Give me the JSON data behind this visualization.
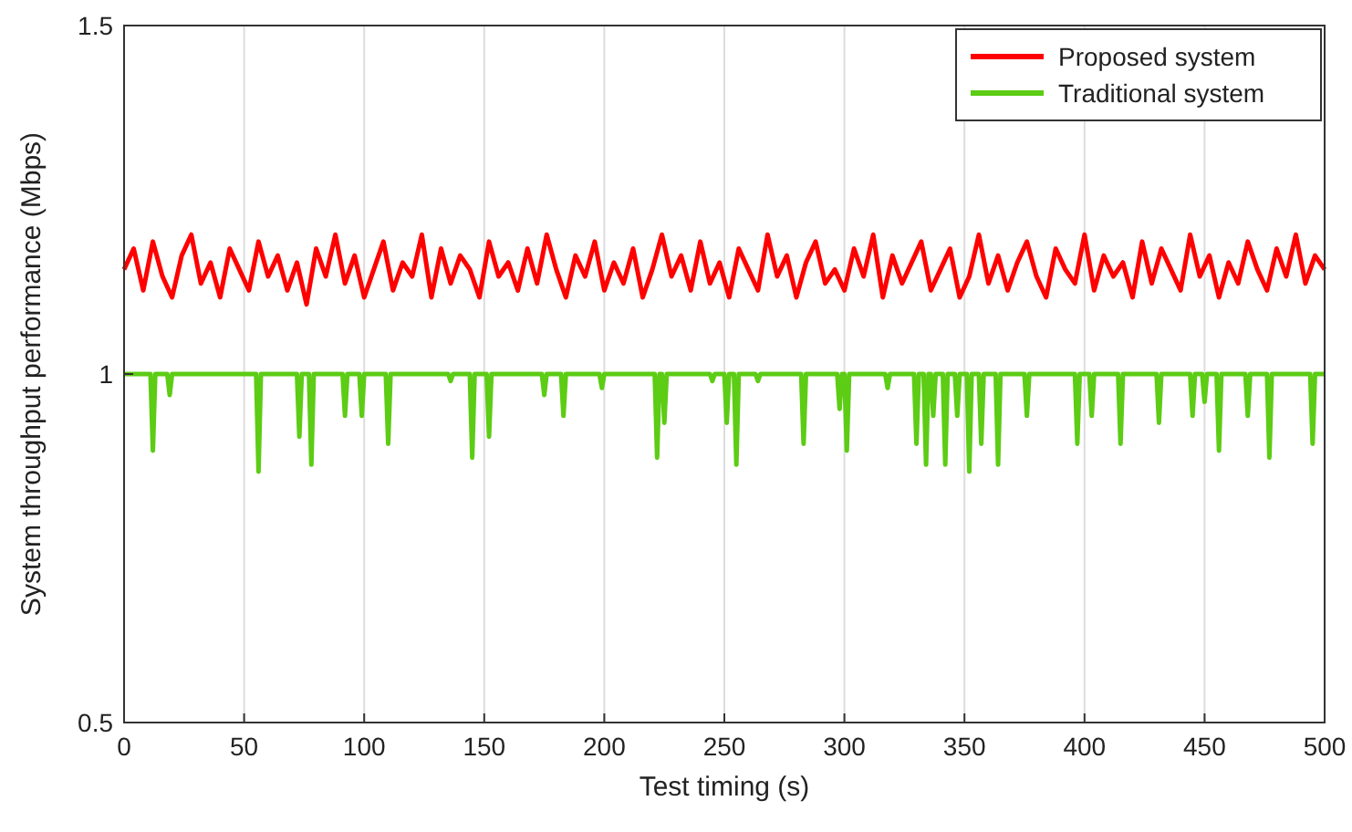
{
  "chart_data": {
    "type": "line",
    "xlabel": "Test timing (s)",
    "ylabel": "System throughput performance (Mbps)",
    "xlim": [
      0,
      500
    ],
    "xticks": [
      0,
      50,
      100,
      150,
      200,
      250,
      300,
      350,
      400,
      450,
      500
    ],
    "ylim": [
      0.5,
      1.5
    ],
    "yticks": [
      0.5,
      1,
      1.5
    ],
    "grid": "x",
    "legend": "top right",
    "series": [
      {
        "name": "Proposed system",
        "color": "#ff0000",
        "x": [
          0,
          4,
          8,
          12,
          16,
          20,
          24,
          28,
          32,
          36,
          40,
          44,
          48,
          52,
          56,
          60,
          64,
          68,
          72,
          76,
          80,
          84,
          88,
          92,
          96,
          100,
          104,
          108,
          112,
          116,
          120,
          124,
          128,
          132,
          136,
          140,
          144,
          148,
          152,
          156,
          160,
          164,
          168,
          172,
          176,
          180,
          184,
          188,
          192,
          196,
          200,
          204,
          208,
          212,
          216,
          220,
          224,
          228,
          232,
          236,
          240,
          244,
          248,
          252,
          256,
          260,
          264,
          268,
          272,
          276,
          280,
          284,
          288,
          292,
          296,
          300,
          304,
          308,
          312,
          316,
          320,
          324,
          328,
          332,
          336,
          340,
          344,
          348,
          352,
          356,
          360,
          364,
          368,
          372,
          376,
          380,
          384,
          388,
          392,
          396,
          400,
          404,
          408,
          412,
          416,
          420,
          424,
          428,
          432,
          436,
          440,
          444,
          448,
          452,
          456,
          460,
          464,
          468,
          472,
          476,
          480,
          484,
          488,
          492,
          496,
          500
        ],
        "values": [
          1.15,
          1.18,
          1.12,
          1.19,
          1.14,
          1.11,
          1.17,
          1.2,
          1.13,
          1.16,
          1.11,
          1.18,
          1.15,
          1.12,
          1.19,
          1.14,
          1.17,
          1.12,
          1.16,
          1.1,
          1.18,
          1.14,
          1.2,
          1.13,
          1.17,
          1.11,
          1.15,
          1.19,
          1.12,
          1.16,
          1.14,
          1.2,
          1.11,
          1.18,
          1.13,
          1.17,
          1.15,
          1.11,
          1.19,
          1.14,
          1.16,
          1.12,
          1.18,
          1.13,
          1.2,
          1.15,
          1.11,
          1.17,
          1.14,
          1.19,
          1.12,
          1.16,
          1.13,
          1.18,
          1.11,
          1.15,
          1.2,
          1.14,
          1.17,
          1.12,
          1.19,
          1.13,
          1.16,
          1.11,
          1.18,
          1.15,
          1.12,
          1.2,
          1.14,
          1.17,
          1.11,
          1.16,
          1.19,
          1.13,
          1.15,
          1.12,
          1.18,
          1.14,
          1.2,
          1.11,
          1.17,
          1.13,
          1.16,
          1.19,
          1.12,
          1.15,
          1.18,
          1.11,
          1.14,
          1.2,
          1.13,
          1.17,
          1.12,
          1.16,
          1.19,
          1.14,
          1.11,
          1.18,
          1.15,
          1.13,
          1.2,
          1.12,
          1.17,
          1.14,
          1.16,
          1.11,
          1.19,
          1.13,
          1.18,
          1.15,
          1.12,
          1.2,
          1.14,
          1.17,
          1.11,
          1.16,
          1.13,
          1.19,
          1.15,
          1.12,
          1.18,
          1.14,
          1.2,
          1.13,
          1.17,
          1.15
        ]
      },
      {
        "name": "Traditional system",
        "color": "#5ccc14",
        "x": [
          0,
          11,
          12,
          13,
          18,
          19,
          20,
          55,
          56,
          57,
          72,
          73,
          74,
          77,
          78,
          79,
          91,
          92,
          93,
          98,
          99,
          100,
          109,
          110,
          111,
          135,
          136,
          137,
          144,
          145,
          146,
          151,
          152,
          153,
          174,
          175,
          176,
          182,
          183,
          184,
          198,
          199,
          200,
          221,
          222,
          223,
          224,
          225,
          226,
          244,
          245,
          246,
          250,
          251,
          252,
          254,
          255,
          256,
          263,
          264,
          265,
          282,
          283,
          284,
          297,
          298,
          299,
          300,
          301,
          302,
          317,
          318,
          319,
          329,
          330,
          331,
          333,
          334,
          335,
          336,
          337,
          338,
          341,
          342,
          343,
          346,
          347,
          348,
          351,
          352,
          353,
          356,
          357,
          358,
          363,
          364,
          365,
          375,
          376,
          377,
          396,
          397,
          398,
          402,
          403,
          404,
          414,
          415,
          416,
          430,
          431,
          432,
          444,
          445,
          446,
          449,
          450,
          451,
          455,
          456,
          457,
          467,
          468,
          469,
          476,
          477,
          478,
          494,
          495,
          496,
          500
        ],
        "values": [
          1,
          1,
          0.89,
          1,
          1,
          0.97,
          1,
          1,
          0.86,
          1,
          1,
          0.91,
          1,
          1,
          0.87,
          1,
          1,
          0.94,
          1,
          1,
          0.94,
          1,
          1,
          0.9,
          1,
          1,
          0.99,
          1,
          1,
          0.88,
          1,
          1,
          0.91,
          1,
          1,
          0.97,
          1,
          1,
          0.94,
          1,
          1,
          0.98,
          1,
          1,
          0.88,
          1,
          1,
          0.93,
          1,
          1,
          0.99,
          1,
          1,
          0.93,
          1,
          1,
          0.87,
          1,
          1,
          0.99,
          1,
          1,
          0.9,
          1,
          1,
          0.95,
          1,
          1,
          0.89,
          1,
          1,
          0.98,
          1,
          1,
          0.9,
          1,
          1,
          0.87,
          1,
          1,
          0.94,
          1,
          1,
          0.87,
          1,
          1,
          0.94,
          1,
          1,
          0.86,
          1,
          1,
          0.9,
          1,
          1,
          0.87,
          1,
          1,
          0.94,
          1,
          1,
          0.9,
          1,
          1,
          0.94,
          1,
          1,
          0.9,
          1,
          1,
          0.93,
          1,
          1,
          0.94,
          1,
          1,
          0.96,
          1,
          1,
          0.89,
          1,
          1,
          0.94,
          1,
          1,
          0.88,
          1,
          1,
          0.9,
          1,
          1
        ]
      }
    ]
  }
}
